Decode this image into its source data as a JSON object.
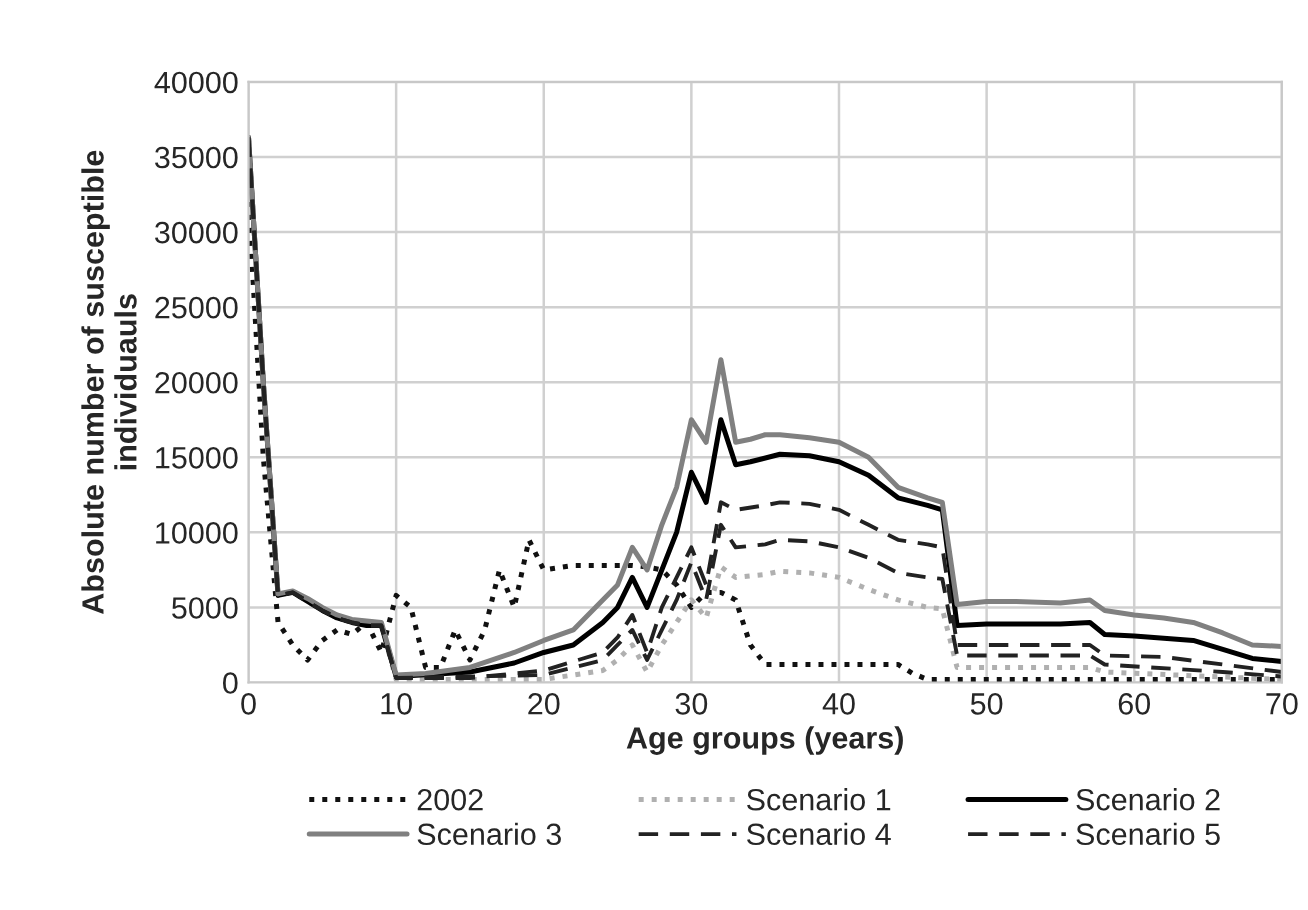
{
  "chart_data": {
    "type": "line",
    "xlabel": "Age groups (years)",
    "ylabel": "Absolute number of susceptible\nindividuauls",
    "xlim": [
      0,
      70
    ],
    "xticks": [
      0,
      10,
      20,
      30,
      40,
      50,
      60,
      70
    ],
    "ylim": [
      0,
      40000
    ],
    "yticks": [
      0,
      5000,
      10000,
      15000,
      20000,
      25000,
      30000,
      35000,
      40000
    ],
    "grid": true,
    "legend": "bottom",
    "series": [
      {
        "name": "2002",
        "color": "#111111",
        "line_style": "dotted",
        "x": [
          0,
          1,
          2,
          3,
          4,
          5,
          6,
          7,
          8,
          9,
          10,
          11,
          12,
          13,
          14,
          15,
          16,
          17,
          18,
          19,
          20,
          22,
          24,
          26,
          27,
          28,
          29,
          30,
          31,
          32,
          33,
          34,
          35,
          40,
          44,
          45,
          46,
          50,
          60,
          70
        ],
        "values": [
          32000,
          15000,
          4000,
          2500,
          1500,
          2800,
          3500,
          3200,
          4000,
          2000,
          5800,
          5000,
          1000,
          1000,
          3500,
          1500,
          3500,
          7500,
          5000,
          9500,
          7500,
          7800,
          7800,
          7800,
          7700,
          7500,
          6500,
          5000,
          6000,
          6000,
          5500,
          2500,
          1200,
          1200,
          1200,
          600,
          200,
          200,
          200,
          200
        ]
      },
      {
        "name": "Scenario 1",
        "color": "#b0b0b0",
        "line_style": "dotted",
        "x": [
          0,
          1,
          2,
          3,
          4,
          5,
          6,
          7,
          8,
          9,
          10,
          15,
          20,
          24,
          25,
          26,
          27,
          28,
          29,
          30,
          31,
          32,
          33,
          35,
          36,
          38,
          40,
          42,
          44,
          46,
          47,
          48,
          50,
          57,
          58,
          70
        ],
        "values": [
          36300,
          20000,
          5800,
          6000,
          5400,
          4800,
          4300,
          4000,
          3800,
          3800,
          200,
          200,
          200,
          800,
          1500,
          2500,
          700,
          2500,
          4000,
          5500,
          4300,
          7700,
          7000,
          7200,
          7400,
          7300,
          7000,
          6200,
          5500,
          5000,
          4900,
          1000,
          1000,
          1000,
          700,
          200
        ]
      },
      {
        "name": "Scenario 2",
        "color": "#000000",
        "line_style": "solid",
        "x": [
          0,
          1,
          2,
          3,
          4,
          5,
          6,
          7,
          8,
          9,
          10,
          15,
          18,
          20,
          22,
          24,
          25,
          26,
          27,
          28,
          29,
          30,
          31,
          32,
          33,
          34,
          36,
          38,
          40,
          42,
          44,
          46,
          47,
          48,
          50,
          55,
          57,
          58,
          60,
          64,
          66,
          68,
          70
        ],
        "values": [
          36300,
          20000,
          5800,
          6000,
          5400,
          4800,
          4300,
          4000,
          3800,
          3800,
          400,
          700,
          1300,
          2000,
          2500,
          4000,
          5000,
          7000,
          5000,
          7500,
          10000,
          14000,
          12000,
          17500,
          14500,
          14700,
          15200,
          15100,
          14700,
          13800,
          12300,
          11800,
          11500,
          3800,
          3900,
          3900,
          4000,
          3200,
          3100,
          2800,
          2200,
          1600,
          1400
        ]
      },
      {
        "name": "Scenario 3",
        "color": "#808080",
        "line_style": "solid",
        "x": [
          0,
          1,
          2,
          3,
          4,
          5,
          6,
          7,
          8,
          9,
          10,
          12,
          15,
          18,
          20,
          22,
          24,
          25,
          26,
          27,
          28,
          29,
          30,
          31,
          32,
          33,
          34,
          35,
          36,
          38,
          40,
          42,
          44,
          46,
          47,
          48,
          50,
          52,
          55,
          57,
          58,
          60,
          62,
          64,
          66,
          68,
          70
        ],
        "values": [
          36300,
          20000,
          5900,
          6100,
          5600,
          5000,
          4500,
          4200,
          4100,
          4000,
          500,
          600,
          1000,
          2000,
          2800,
          3500,
          5500,
          6500,
          9000,
          7500,
          10500,
          13000,
          17500,
          16000,
          21500,
          16000,
          16200,
          16500,
          16500,
          16300,
          16000,
          15000,
          13000,
          12300,
          12000,
          5200,
          5400,
          5400,
          5300,
          5500,
          4800,
          4500,
          4300,
          4000,
          3300,
          2500,
          2400
        ]
      },
      {
        "name": "Scenario 4",
        "color": "#222222",
        "line_style": "dashed",
        "x": [
          0,
          1,
          2,
          3,
          4,
          5,
          6,
          7,
          8,
          9,
          10,
          15,
          20,
          24,
          25,
          26,
          27,
          28,
          29,
          30,
          31,
          32,
          33,
          35,
          36,
          38,
          40,
          42,
          44,
          46,
          47,
          48,
          50,
          57,
          58,
          62,
          66,
          70
        ],
        "values": [
          36300,
          20000,
          5800,
          6000,
          5400,
          4800,
          4300,
          4000,
          3800,
          3800,
          300,
          300,
          800,
          2000,
          3000,
          4500,
          2000,
          5000,
          7000,
          9000,
          6500,
          12000,
          11500,
          11800,
          12000,
          11900,
          11500,
          10500,
          9500,
          9200,
          9000,
          2500,
          2500,
          2500,
          1800,
          1700,
          1200,
          700
        ]
      },
      {
        "name": "Scenario 5",
        "color": "#222222",
        "line_style": "dashed",
        "x": [
          0,
          1,
          2,
          3,
          4,
          5,
          6,
          7,
          8,
          9,
          10,
          20,
          24,
          25,
          26,
          27,
          28,
          29,
          30,
          31,
          32,
          33,
          35,
          36,
          38,
          40,
          42,
          44,
          46,
          47,
          48,
          50,
          57,
          58,
          66,
          70
        ],
        "values": [
          36300,
          20000,
          5800,
          6000,
          5400,
          4800,
          4300,
          4000,
          3800,
          3800,
          300,
          500,
          1500,
          2500,
          3500,
          1500,
          3500,
          5500,
          8000,
          5500,
          10500,
          9000,
          9200,
          9500,
          9400,
          9000,
          8300,
          7300,
          7000,
          6900,
          1800,
          1800,
          1800,
          1200,
          700,
          400
        ]
      }
    ]
  }
}
